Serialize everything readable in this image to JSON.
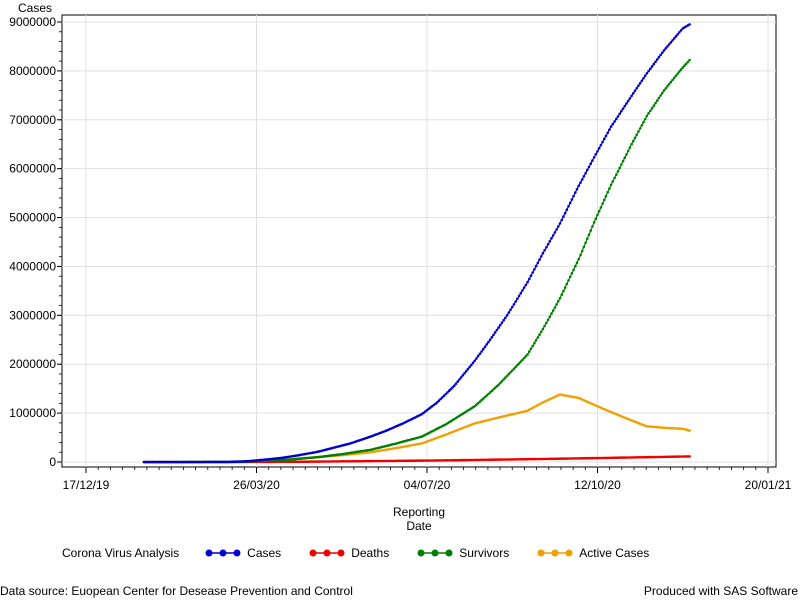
{
  "chart_data": {
    "type": "line",
    "ylabel": "Cases",
    "xlabel_lines": [
      "Reporting",
      "Date"
    ],
    "legend_title": "Corona Virus Analysis",
    "x_ticks": [
      "17/12/19",
      "26/03/20",
      "04/07/20",
      "12/10/20",
      "20/01/21"
    ],
    "xlim": [
      "2019-12-17",
      "2021-01-20"
    ],
    "ylim": [
      0,
      9000000
    ],
    "y_ticks": [
      0,
      1000000,
      2000000,
      3000000,
      4000000,
      5000000,
      6000000,
      7000000,
      8000000,
      9000000
    ],
    "y_tick_labels": [
      "0",
      "1000000",
      "2000000",
      "3000000",
      "4000000",
      "5000000",
      "6000000",
      "7000000",
      "8000000",
      "9000000"
    ],
    "grid": true,
    "legend_position": "bottom",
    "series": [
      {
        "name": "Cases",
        "color": "#0000cc",
        "points": [
          [
            "2020-01-20",
            0
          ],
          [
            "2020-02-15",
            0
          ],
          [
            "2020-03-10",
            3000
          ],
          [
            "2020-03-20",
            15000
          ],
          [
            "2020-03-30",
            45000
          ],
          [
            "2020-04-10",
            85000
          ],
          [
            "2020-04-20",
            140000
          ],
          [
            "2020-05-01",
            210000
          ],
          [
            "2020-05-10",
            290000
          ],
          [
            "2020-05-20",
            380000
          ],
          [
            "2020-06-01",
            520000
          ],
          [
            "2020-06-10",
            640000
          ],
          [
            "2020-06-20",
            790000
          ],
          [
            "2020-07-01",
            980000
          ],
          [
            "2020-07-10",
            1220000
          ],
          [
            "2020-07-20",
            1560000
          ],
          [
            "2020-08-01",
            2070000
          ],
          [
            "2020-08-10",
            2500000
          ],
          [
            "2020-08-20",
            3000000
          ],
          [
            "2020-09-01",
            3680000
          ],
          [
            "2020-09-10",
            4270000
          ],
          [
            "2020-09-20",
            4880000
          ],
          [
            "2020-10-01",
            5650000
          ],
          [
            "2020-10-10",
            6230000
          ],
          [
            "2020-10-20",
            6860000
          ],
          [
            "2020-11-01",
            7490000
          ],
          [
            "2020-11-10",
            7950000
          ],
          [
            "2020-11-20",
            8420000
          ],
          [
            "2020-12-01",
            8870000
          ],
          [
            "2020-12-05",
            8950000
          ]
        ]
      },
      {
        "name": "Deaths",
        "color": "#ee0000",
        "points": [
          [
            "2020-01-20",
            0
          ],
          [
            "2020-03-20",
            500
          ],
          [
            "2020-04-20",
            5000
          ],
          [
            "2020-05-20",
            15000
          ],
          [
            "2020-06-20",
            25000
          ],
          [
            "2020-07-20",
            36000
          ],
          [
            "2020-08-20",
            52000
          ],
          [
            "2020-09-20",
            68000
          ],
          [
            "2020-10-20",
            86000
          ],
          [
            "2020-11-20",
            105000
          ],
          [
            "2020-12-05",
            115000
          ]
        ]
      },
      {
        "name": "Survivors",
        "color": "#008000",
        "points": [
          [
            "2020-01-20",
            0
          ],
          [
            "2020-03-10",
            2000
          ],
          [
            "2020-03-20",
            10000
          ],
          [
            "2020-04-01",
            25000
          ],
          [
            "2020-04-15",
            50000
          ],
          [
            "2020-05-01",
            100000
          ],
          [
            "2020-05-15",
            160000
          ],
          [
            "2020-06-01",
            250000
          ],
          [
            "2020-06-15",
            370000
          ],
          [
            "2020-07-01",
            520000
          ],
          [
            "2020-07-15",
            770000
          ],
          [
            "2020-08-01",
            1140000
          ],
          [
            "2020-08-15",
            1580000
          ],
          [
            "2020-09-01",
            2200000
          ],
          [
            "2020-09-10",
            2720000
          ],
          [
            "2020-09-20",
            3350000
          ],
          [
            "2020-10-01",
            4150000
          ],
          [
            "2020-10-10",
            4900000
          ],
          [
            "2020-10-20",
            5670000
          ],
          [
            "2020-11-01",
            6500000
          ],
          [
            "2020-11-10",
            7080000
          ],
          [
            "2020-11-20",
            7600000
          ],
          [
            "2020-12-01",
            8070000
          ],
          [
            "2020-12-05",
            8220000
          ]
        ]
      },
      {
        "name": "Active Cases",
        "color": "#f0a000",
        "points": [
          [
            "2020-01-20",
            0
          ],
          [
            "2020-03-10",
            1000
          ],
          [
            "2020-03-20",
            5000
          ],
          [
            "2020-04-01",
            25000
          ],
          [
            "2020-04-15",
            55000
          ],
          [
            "2020-05-01",
            100000
          ],
          [
            "2020-05-15",
            140000
          ],
          [
            "2020-06-01",
            200000
          ],
          [
            "2020-06-15",
            280000
          ],
          [
            "2020-07-01",
            380000
          ],
          [
            "2020-07-15",
            560000
          ],
          [
            "2020-08-01",
            790000
          ],
          [
            "2020-08-15",
            910000
          ],
          [
            "2020-09-01",
            1050000
          ],
          [
            "2020-09-10",
            1220000
          ],
          [
            "2020-09-20",
            1380000
          ],
          [
            "2020-10-01",
            1310000
          ],
          [
            "2020-10-10",
            1170000
          ],
          [
            "2020-10-20",
            1020000
          ],
          [
            "2020-11-01",
            850000
          ],
          [
            "2020-11-10",
            730000
          ],
          [
            "2020-11-20",
            700000
          ],
          [
            "2020-12-01",
            680000
          ],
          [
            "2020-12-05",
            640000
          ]
        ]
      }
    ]
  },
  "footer": {
    "source": "Data source: Euopean Center for Desease Prevention and Control",
    "produced": "Produced with SAS Software"
  }
}
